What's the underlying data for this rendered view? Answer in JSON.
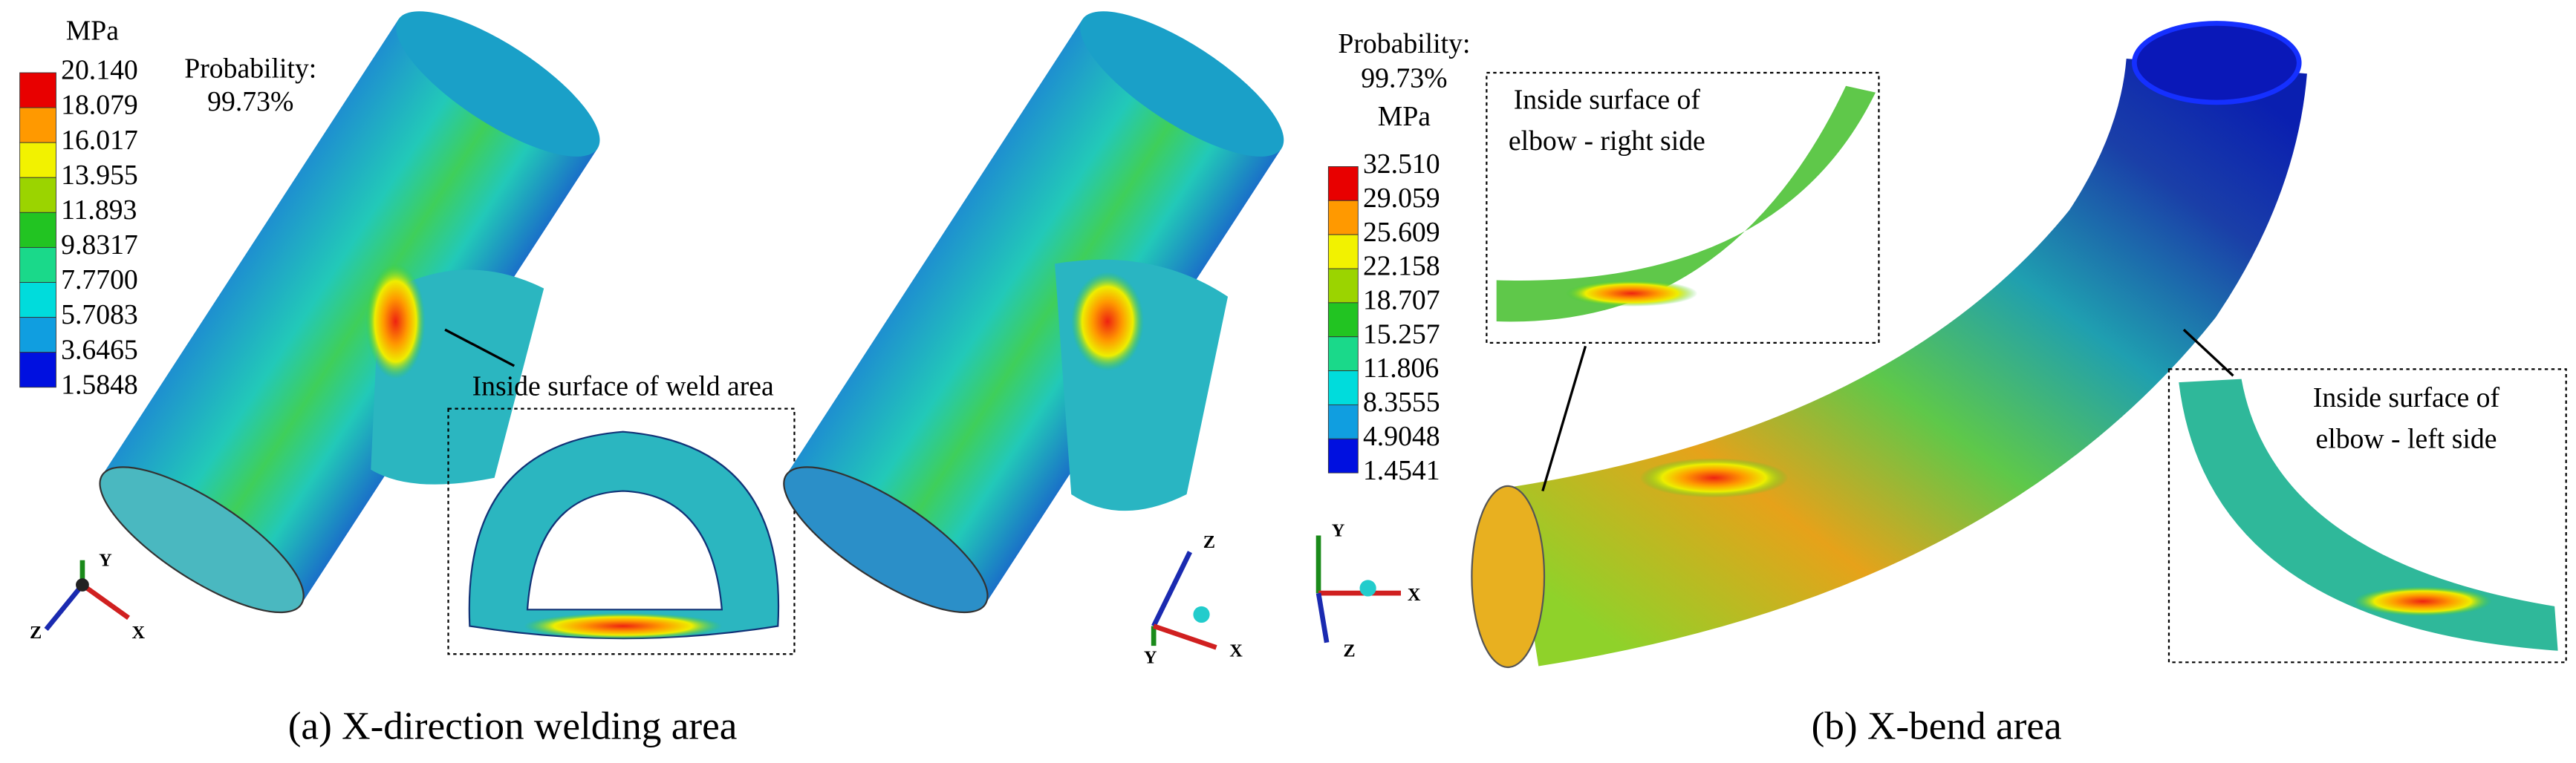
{
  "panel_a": {
    "legend": {
      "unit": "MPa",
      "labels": [
        "20.140",
        "18.079",
        "16.017",
        "13.955",
        "11.893",
        "9.8317",
        "7.7700",
        "5.7083",
        "3.6465",
        "1.5848"
      ]
    },
    "probability_label": "Probability:",
    "probability_value": "99.73%",
    "annotation": "Inside surface of weld area",
    "triad_1": [
      "Y",
      "Z",
      "X"
    ],
    "triad_2": [
      "Z",
      "Y",
      "X"
    ],
    "caption": "(a) X-direction welding area"
  },
  "panel_b": {
    "legend": {
      "unit": "MPa",
      "labels": [
        "32.510",
        "29.059",
        "25.609",
        "22.158",
        "18.707",
        "15.257",
        "11.806",
        "8.3555",
        "4.9048",
        "1.4541"
      ]
    },
    "probability_label": "Probability:",
    "probability_value": "99.73%",
    "annotation_right": [
      "Inside surface of",
      "elbow - right side"
    ],
    "annotation_left": [
      "Inside surface of",
      "elbow - left side"
    ],
    "triad": [
      "Y",
      "X",
      "Z"
    ],
    "caption": "(b) X-bend area"
  }
}
